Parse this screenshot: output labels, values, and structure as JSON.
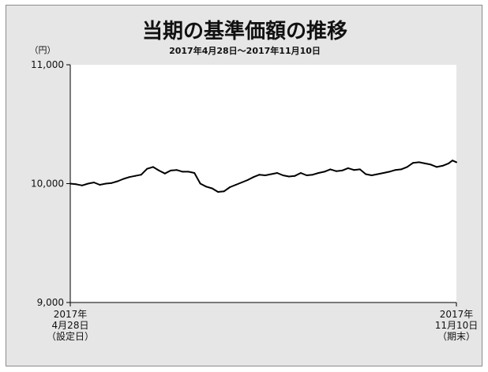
{
  "chart_data": {
    "type": "line",
    "title": "当期の基準価額の推移",
    "subtitle": "2017年4月28日〜2017年11月10日",
    "ylabel": "（円）",
    "xlabel": "",
    "ylim": [
      9000,
      11000
    ],
    "yticks": [
      {
        "value": 9000,
        "label": "9,000"
      },
      {
        "value": 10000,
        "label": "10,000"
      },
      {
        "value": 11000,
        "label": "11,000"
      }
    ],
    "x_start_label": [
      "2017年",
      "4月28日",
      "（設定日）"
    ],
    "x_end_label": [
      "2017年",
      "11月10日",
      "（期末）"
    ],
    "grid": false,
    "legend": "none",
    "colors": {
      "background": "#e6e6e6",
      "plot_area": "#ffffff",
      "line": "#000000"
    },
    "series": [
      {
        "x": [
          "2017-04-28",
          "2017-05-01",
          "2017-05-04",
          "2017-05-07",
          "2017-05-10",
          "2017-05-13",
          "2017-05-16",
          "2017-05-19",
          "2017-05-22",
          "2017-05-25",
          "2017-05-28",
          "2017-05-31",
          "2017-06-03",
          "2017-06-06",
          "2017-06-09",
          "2017-06-12",
          "2017-06-15",
          "2017-06-18",
          "2017-06-21",
          "2017-06-24",
          "2017-06-27",
          "2017-06-30",
          "2017-07-03",
          "2017-07-06",
          "2017-07-09",
          "2017-07-12",
          "2017-07-15",
          "2017-07-18",
          "2017-07-21",
          "2017-07-24",
          "2017-07-27",
          "2017-07-30",
          "2017-08-02",
          "2017-08-05",
          "2017-08-08",
          "2017-08-11",
          "2017-08-14",
          "2017-08-17",
          "2017-08-20",
          "2017-08-23",
          "2017-08-26",
          "2017-08-29",
          "2017-09-01",
          "2017-09-04",
          "2017-09-07",
          "2017-09-10",
          "2017-09-13",
          "2017-09-16",
          "2017-09-19",
          "2017-09-22",
          "2017-09-25",
          "2017-09-28",
          "2017-10-01",
          "2017-10-04",
          "2017-10-07",
          "2017-10-10",
          "2017-10-13",
          "2017-10-16",
          "2017-10-19",
          "2017-10-22",
          "2017-10-25",
          "2017-10-28",
          "2017-10-31",
          "2017-11-03",
          "2017-11-06",
          "2017-11-08",
          "2017-11-10"
        ],
        "y": [
          10000,
          9995,
          9985,
          10000,
          10010,
          9990,
          10000,
          10005,
          10020,
          10040,
          10055,
          10065,
          10075,
          10125,
          10140,
          10110,
          10085,
          10110,
          10115,
          10100,
          10100,
          10090,
          10000,
          9975,
          9960,
          9930,
          9935,
          9970,
          9990,
          10010,
          10030,
          10055,
          10075,
          10070,
          10080,
          10090,
          10070,
          10060,
          10065,
          10090,
          10070,
          10075,
          10090,
          10100,
          10120,
          10105,
          10110,
          10130,
          10115,
          10120,
          10080,
          10070,
          10080,
          10090,
          10100,
          10115,
          10120,
          10140,
          10175,
          10180,
          10170,
          10160,
          10140,
          10150,
          10170,
          10195,
          10180
        ]
      }
    ]
  }
}
